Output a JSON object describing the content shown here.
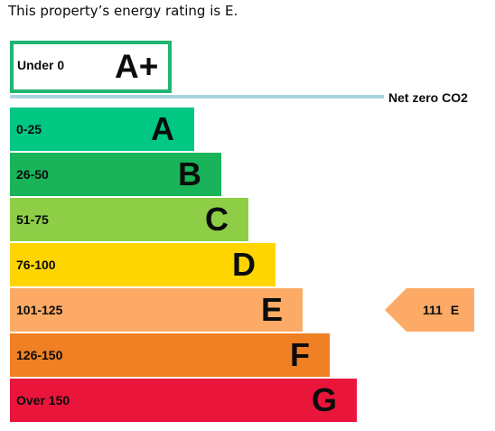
{
  "summary": {
    "prefix": "This property’s energy rating is ",
    "rating": "E",
    "suffix": "."
  },
  "aplus": {
    "range": "Under 0",
    "letter": "A+",
    "border_color": "#21b573"
  },
  "net_zero": {
    "label": "Net zero CO2",
    "line_color": "#a8d3dc"
  },
  "bands": [
    {
      "range": "0-25",
      "letter": "A",
      "color": "#00c781"
    },
    {
      "range": "26-50",
      "letter": "B",
      "color": "#19b459"
    },
    {
      "range": "51-75",
      "letter": "C",
      "color": "#8dce46"
    },
    {
      "range": "76-100",
      "letter": "D",
      "color": "#ffd500"
    },
    {
      "range": "101-125",
      "letter": "E",
      "color": "#fcaa65"
    },
    {
      "range": "126-150",
      "letter": "F",
      "color": "#ef8023"
    },
    {
      "range": "Over 150",
      "letter": "G",
      "color": "#e9153b"
    }
  ],
  "current": {
    "score": "111",
    "letter": "E",
    "color": "#fcaa65"
  }
}
